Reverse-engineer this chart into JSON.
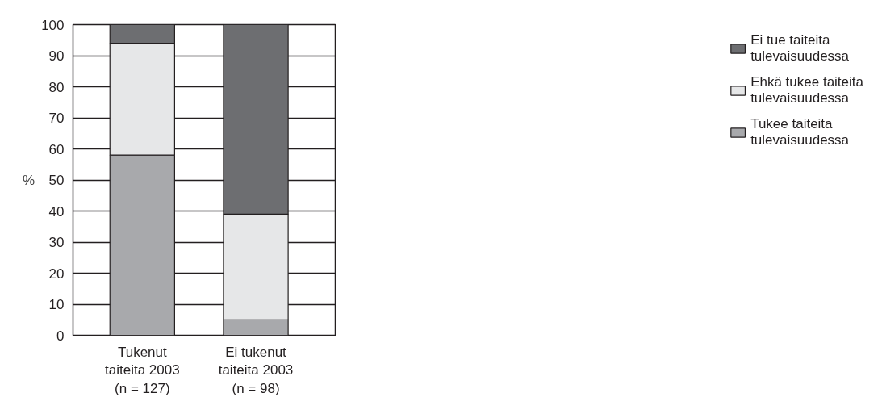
{
  "chart_data": {
    "type": "bar",
    "stacked": true,
    "ylabel": "%",
    "categories": [
      "Tukenut\ntaiteita 2003\n(n = 127)",
      "Ei tukenut\ntaiteita 2003\n(n = 98)"
    ],
    "series": [
      {
        "name": "Tukee taiteita tulevaisuudessa",
        "color": "#a8a9ac",
        "values": [
          58,
          5
        ]
      },
      {
        "name": "Ehkä tukee taiteita tulevaisuudessa",
        "color": "#e6e7e8",
        "values": [
          36,
          34
        ]
      },
      {
        "name": "Ei tue taiteita tulevaisuudessa",
        "color": "#6d6e71",
        "values": [
          6,
          61
        ]
      }
    ],
    "ylim": [
      0,
      100
    ],
    "yticks": [
      0,
      10,
      20,
      30,
      40,
      50,
      60,
      70,
      80,
      90,
      100
    ],
    "grid": "y",
    "legend": "right"
  }
}
